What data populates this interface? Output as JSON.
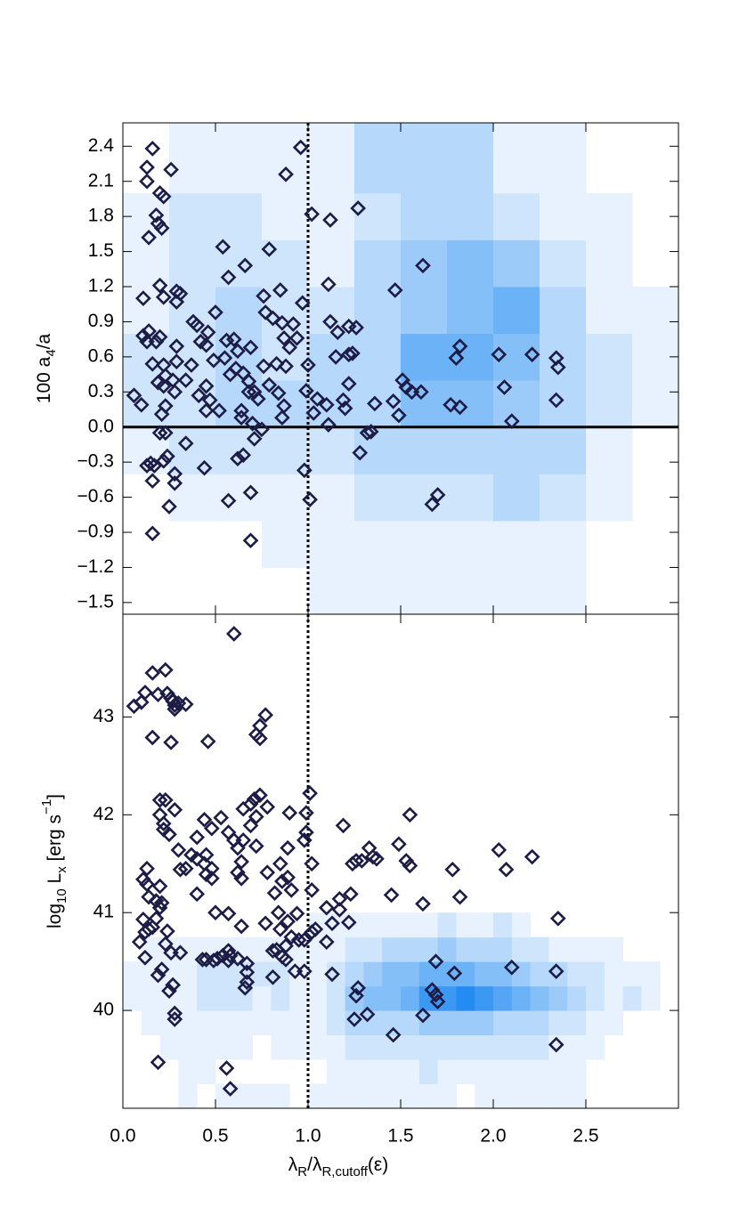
{
  "chart_data": [
    {
      "type": "scatter",
      "ylabel": [
        {
          "text": "100 a"
        },
        {
          "text": "4",
          "script": "sub"
        },
        {
          "text": "/a"
        }
      ],
      "ylim": [
        -1.6,
        2.6
      ],
      "yticks": [
        {
          "value": -1.5,
          "label": "−1.5"
        },
        {
          "value": -1.2,
          "label": "−1.2"
        },
        {
          "value": -0.9,
          "label": "−0.9"
        },
        {
          "value": -0.6,
          "label": "−0.6"
        },
        {
          "value": -0.3,
          "label": "−0.3"
        },
        {
          "value": 0,
          "label": "0.0"
        },
        0.3,
        0.6,
        0.9,
        1.2,
        1.5,
        1.8,
        2.1,
        2.4
      ],
      "hline": 0,
      "vline": 1.0,
      "color": "#1c1c46",
      "heatmap": {
        "color": "#0a7ef0",
        "zlim": [
          0,
          10
        ],
        "xbins": [
          0,
          0.25,
          0.5,
          0.75,
          1.0,
          1.25,
          1.5,
          1.75,
          2.0,
          2.25,
          2.5,
          2.75,
          3.0
        ],
        "ybins": [
          -1.6,
          -1.2,
          -0.8,
          -0.4,
          0,
          0.4,
          0.8,
          1.2,
          1.6,
          2.0,
          2.4,
          2.8
        ],
        "z": [
          [
            0,
            0,
            0,
            0,
            1,
            1,
            1,
            1,
            1,
            1,
            0,
            0
          ],
          [
            0,
            0,
            0,
            1,
            1,
            1,
            1,
            1,
            1,
            1,
            0,
            0
          ],
          [
            0,
            1,
            1,
            1,
            1,
            2,
            2,
            2,
            3,
            2,
            1,
            0
          ],
          [
            1,
            2,
            2,
            2,
            2,
            3,
            3,
            3,
            3,
            3,
            1,
            0
          ],
          [
            2,
            2,
            3,
            3,
            3,
            3,
            5,
            5,
            4,
            3,
            2,
            1
          ],
          [
            2,
            2,
            3,
            2,
            3,
            3,
            6,
            6,
            5,
            3,
            2,
            1
          ],
          [
            1,
            2,
            3,
            2,
            2,
            3,
            4,
            5,
            6,
            3,
            1,
            1
          ],
          [
            1,
            2,
            2,
            2,
            1,
            3,
            4,
            5,
            4,
            2,
            1,
            0
          ],
          [
            1,
            2,
            2,
            1,
            1,
            2,
            3,
            3,
            2,
            1,
            1,
            0
          ],
          [
            0,
            1,
            1,
            1,
            1,
            3,
            3,
            3,
            1,
            1,
            0,
            0
          ],
          [
            0,
            1,
            1,
            1,
            1,
            3,
            3,
            3,
            1,
            1,
            0,
            0
          ]
        ]
      },
      "x": [
        0.16,
        0.13,
        0.26,
        0.13,
        0.2,
        0.22,
        0.88,
        0.96,
        0.18,
        0.19,
        0.21,
        0.14,
        1.02,
        1.12,
        1.27,
        0.54,
        0.79,
        0.66,
        0.57,
        1.62,
        0.2,
        0.29,
        0.31,
        0.11,
        1.11,
        1.47,
        0.85,
        0.76,
        0.22,
        0.29,
        0.97,
        0.77,
        0.5,
        0.38,
        0.4,
        0.81,
        0.86,
        0.92,
        1.12,
        1.22,
        1.26,
        1.16,
        0.94,
        0.14,
        0.11,
        0.13,
        0.18,
        0.2,
        0.46,
        0.42,
        0.56,
        0.6,
        0.87,
        1.82,
        0.29,
        0.45,
        0.69,
        0.9,
        0.62,
        1.24,
        1.22,
        2.03,
        2.21,
        2.34,
        1.8,
        1.15,
        2.35,
        1.0,
        0.55,
        0.49,
        0.16,
        0.22,
        0.29,
        0.37,
        0.61,
        0.76,
        0.88,
        0.83,
        0.23,
        0.58,
        0.65,
        0.27,
        0.34,
        1.51,
        1.56,
        1.53,
        1.61,
        1.22,
        2.06,
        0.19,
        0.22,
        0.45,
        0.68,
        0.79,
        0.99,
        0.68,
        0.71,
        0.84,
        0.06,
        0.28,
        0.41,
        0.47,
        0.73,
        1.05,
        1.19,
        1.2,
        1.46,
        2.34,
        1.77,
        1.82,
        1.36,
        1.1,
        0.1,
        0.23,
        0.21,
        0.45,
        0.52,
        0.64,
        0.87,
        1.03,
        1.49,
        2.1,
        1.11,
        0.64,
        0.7,
        0.86,
        0.75,
        0.71,
        0.2,
        0.23,
        1.32,
        1.34,
        0.34,
        1.28,
        0.65,
        0.62,
        0.24,
        0.22,
        0.17,
        0.13,
        0.15,
        0.44,
        0.98,
        0.28,
        0.16,
        0.28,
        0.69,
        1.7,
        0.57,
        1.01,
        1.67,
        0.25,
        0.16,
        0.69
      ],
      "values": [
        2.38,
        2.22,
        2.2,
        2.1,
        2.0,
        1.97,
        2.16,
        2.39,
        1.81,
        1.74,
        1.7,
        1.62,
        1.82,
        1.77,
        1.87,
        1.54,
        1.52,
        1.38,
        1.28,
        1.38,
        1.21,
        1.16,
        1.14,
        1.1,
        1.22,
        1.17,
        1.17,
        1.12,
        1.11,
        1.07,
        1.06,
        0.98,
        0.98,
        0.9,
        0.87,
        0.93,
        0.89,
        0.88,
        0.9,
        0.86,
        0.85,
        0.81,
        0.76,
        0.82,
        0.78,
        0.73,
        0.73,
        0.77,
        0.81,
        0.73,
        0.74,
        0.75,
        0.76,
        0.69,
        0.69,
        0.7,
        0.68,
        0.68,
        0.65,
        0.63,
        0.62,
        0.62,
        0.62,
        0.59,
        0.59,
        0.6,
        0.51,
        0.53,
        0.59,
        0.57,
        0.54,
        0.53,
        0.56,
        0.53,
        0.5,
        0.52,
        0.52,
        0.54,
        0.44,
        0.45,
        0.46,
        0.4,
        0.4,
        0.4,
        0.3,
        0.34,
        0.3,
        0.37,
        0.34,
        0.38,
        0.35,
        0.35,
        0.39,
        0.36,
        0.31,
        0.3,
        0.3,
        0.29,
        0.27,
        0.3,
        0.27,
        0.23,
        0.24,
        0.24,
        0.23,
        0.16,
        0.22,
        0.23,
        0.19,
        0.17,
        0.2,
        0.19,
        0.19,
        0.18,
        0.11,
        0.14,
        0.14,
        0.14,
        0.18,
        0.12,
        0.1,
        0.05,
        0.02,
        0.08,
        0.03,
        0.08,
        -0.02,
        -0.1,
        -0.05,
        -0.05,
        -0.05,
        -0.04,
        -0.14,
        -0.22,
        -0.24,
        -0.27,
        -0.25,
        -0.29,
        -0.33,
        -0.33,
        -0.31,
        -0.35,
        -0.37,
        -0.4,
        -0.46,
        -0.48,
        -0.56,
        -0.58,
        -0.63,
        -0.62,
        -0.66,
        -0.68,
        -0.91,
        -0.97
      ]
    },
    {
      "type": "scatter",
      "ylabel": [
        {
          "text": "log"
        },
        {
          "text": "10",
          "script": "sub"
        },
        {
          "text": " L"
        },
        {
          "text": "x",
          "script": "sub"
        },
        {
          "text": " [erg s"
        },
        {
          "text": "−1",
          "script": "super"
        },
        {
          "text": "]"
        }
      ],
      "xlabel": [
        {
          "text": "λ"
        },
        {
          "text": "R",
          "script": "sub"
        },
        {
          "text": "/λ"
        },
        {
          "text": "R,cutoff",
          "script": "sub"
        },
        {
          "text": "(ε)"
        }
      ],
      "xlim": [
        0,
        3.0
      ],
      "xticks": [
        {
          "value": 0,
          "label": "0.0"
        },
        0.5,
        {
          "value": 1.0,
          "label": "1.0"
        },
        1.5,
        {
          "value": 2.0,
          "label": "2.0"
        },
        2.5
      ],
      "ylim": [
        39.0,
        44.05
      ],
      "yticks": [
        40,
        41,
        42,
        43
      ],
      "vline": 1.0,
      "color": "#1c1c46",
      "heatmap": {
        "color": "#0a7ef0",
        "zlim": [
          0,
          10
        ],
        "xbins": [
          0,
          0.1,
          0.2,
          0.3,
          0.4,
          0.5,
          0.6,
          0.7,
          0.8,
          0.9,
          1.0,
          1.1,
          1.2,
          1.3,
          1.4,
          1.5,
          1.6,
          1.7,
          1.8,
          1.9,
          2.0,
          2.1,
          2.2,
          2.3,
          2.4,
          2.5,
          2.6,
          2.7,
          2.8,
          2.9
        ],
        "ybins": [
          39.0,
          39.25,
          39.5,
          39.75,
          40.0,
          40.25,
          40.5,
          40.75,
          41.0
        ],
        "z": [
          [
            0,
            0,
            0,
            1,
            0,
            1,
            1,
            1,
            1,
            0,
            1,
            1,
            1,
            1,
            1,
            1,
            1,
            1,
            0,
            1,
            1,
            1,
            1,
            1,
            1,
            0,
            0,
            0,
            0
          ],
          [
            0,
            0,
            0,
            1,
            1,
            0,
            0,
            0,
            0,
            0,
            0,
            1,
            1,
            1,
            1,
            1,
            2,
            1,
            1,
            1,
            1,
            1,
            1,
            1,
            1,
            0,
            0,
            0,
            0
          ],
          [
            0,
            0,
            1,
            1,
            1,
            1,
            1,
            0,
            1,
            1,
            1,
            1,
            2,
            2,
            2,
            2,
            2,
            2,
            2,
            2,
            2,
            2,
            2,
            1,
            1,
            1,
            0,
            0,
            0
          ],
          [
            0,
            1,
            1,
            1,
            1,
            1,
            1,
            1,
            1,
            1,
            1,
            2,
            3,
            3,
            3,
            3,
            4,
            4,
            4,
            4,
            3,
            3,
            3,
            2,
            2,
            1,
            1,
            0,
            0
          ],
          [
            1,
            1,
            1,
            1,
            2,
            2,
            2,
            1,
            2,
            1,
            1,
            2,
            4,
            5,
            5,
            6,
            8,
            8,
            9,
            8,
            7,
            6,
            5,
            4,
            3,
            2,
            1,
            2,
            1
          ],
          [
            1,
            1,
            1,
            1,
            2,
            2,
            2,
            2,
            2,
            1,
            1,
            2,
            3,
            4,
            5,
            5,
            6,
            6,
            6,
            5,
            5,
            4,
            3,
            3,
            2,
            2,
            1,
            1,
            1
          ],
          [
            0,
            1,
            1,
            1,
            1,
            1,
            1,
            1,
            1,
            1,
            1,
            1,
            2,
            2,
            3,
            3,
            3,
            4,
            3,
            3,
            3,
            2,
            2,
            1,
            1,
            1,
            1,
            0,
            0
          ],
          [
            0,
            0,
            0,
            0,
            0,
            0,
            0,
            0,
            0,
            0,
            1,
            1,
            1,
            1,
            1,
            1,
            1,
            2,
            1,
            1,
            2,
            1,
            0,
            0,
            0,
            0,
            0,
            0,
            0
          ]
        ]
      },
      "x": [
        0.6,
        0.16,
        0.23,
        0.12,
        0.06,
        0.1,
        0.19,
        0.24,
        0.26,
        0.27,
        0.28,
        0.3,
        0.34,
        0.28,
        0.16,
        0.26,
        0.46,
        0.77,
        0.74,
        0.72,
        0.74,
        0.2,
        0.23,
        0.2,
        0.22,
        0.22,
        0.25,
        0.28,
        0.74,
        0.71,
        0.69,
        0.65,
        0.78,
        0.9,
        1.01,
        0.99,
        0.72,
        0.69,
        0.53,
        0.44,
        0.48,
        0.57,
        0.6,
        0.62,
        0.65,
        0.99,
        0.98,
        0.89,
        1.19,
        1.55,
        0.3,
        0.4,
        0.37,
        0.4,
        0.45,
        0.45,
        0.48,
        0.44,
        0.48,
        0.64,
        0.62,
        0.64,
        0.72,
        0.78,
        0.85,
        0.86,
        0.89,
        0.91,
        1.02,
        1.02,
        0.82,
        1.24,
        1.26,
        1.29,
        1.33,
        1.35,
        1.37,
        1.49,
        1.53,
        1.55,
        2.03,
        2.07,
        2.21,
        1.78,
        1.82,
        1.62,
        1.45,
        1.23,
        1.17,
        1.1,
        1.17,
        1.22,
        1.13,
        1.1,
        2.35,
        0.13,
        0.11,
        0.13,
        0.14,
        0.18,
        0.21,
        0.2,
        0.2,
        0.18,
        0.11,
        0.16,
        0.14,
        0.12,
        0.09,
        0.12,
        0.24,
        0.23,
        0.31,
        0.34,
        0.4,
        0.5,
        0.57,
        0.64,
        0.77,
        0.84,
        0.85,
        0.89,
        0.94,
        0.95,
        0.98,
        0.91,
        0.88,
        0.83,
        0.86,
        0.88,
        0.98,
        0.93,
        1.02,
        1.04,
        0.26,
        0.31,
        0.21,
        0.19,
        0.43,
        0.45,
        0.49,
        0.51,
        0.54,
        0.57,
        0.58,
        0.62,
        0.57,
        0.81,
        0.67,
        0.67,
        0.67,
        0.66,
        0.81,
        0.25,
        0.27,
        1.13,
        1.27,
        1.26,
        1.25,
        1.32,
        1.69,
        1.67,
        1.69,
        1.7,
        1.79,
        2.1,
        2.34,
        1.62,
        1.46,
        2.34,
        0.28,
        0.28,
        0.19,
        0.56,
        0.58
      ],
      "values": [
        43.85,
        43.45,
        43.48,
        43.25,
        43.11,
        43.15,
        43.23,
        43.24,
        43.19,
        43.16,
        43.12,
        43.14,
        43.13,
        43.08,
        42.79,
        42.74,
        42.75,
        43.02,
        42.91,
        42.82,
        42.78,
        42.15,
        42.15,
        42.0,
        41.91,
        41.85,
        41.8,
        42.05,
        42.2,
        42.16,
        42.11,
        42.06,
        42.08,
        42.02,
        42.22,
        42.02,
        41.98,
        41.89,
        41.97,
        41.95,
        41.86,
        41.82,
        41.74,
        41.66,
        41.74,
        41.82,
        41.74,
        41.66,
        41.89,
        42.0,
        41.64,
        41.55,
        41.59,
        41.77,
        41.59,
        41.39,
        41.35,
        41.5,
        41.45,
        41.52,
        41.41,
        41.35,
        41.68,
        41.41,
        41.5,
        41.32,
        41.36,
        41.23,
        41.5,
        41.23,
        41.2,
        41.5,
        41.53,
        41.53,
        41.66,
        41.57,
        41.55,
        41.7,
        41.53,
        41.48,
        41.64,
        41.44,
        41.57,
        41.44,
        41.16,
        41.09,
        41.18,
        41.19,
        41.14,
        41.05,
        41.03,
        40.9,
        40.89,
        40.7,
        40.94,
        41.45,
        41.34,
        41.29,
        41.16,
        41.12,
        41.1,
        41.27,
        41.05,
        40.94,
        40.93,
        40.85,
        40.83,
        40.8,
        40.7,
        40.54,
        40.81,
        40.68,
        41.44,
        41.45,
        41.19,
        41.0,
        40.99,
        40.86,
        40.89,
        41.0,
        40.83,
        40.91,
        40.99,
        40.72,
        40.72,
        40.75,
        40.66,
        40.62,
        40.55,
        40.52,
        40.4,
        40.4,
        40.8,
        40.83,
        40.59,
        40.59,
        40.42,
        40.36,
        40.52,
        40.52,
        40.51,
        40.53,
        40.56,
        40.61,
        40.56,
        40.53,
        40.51,
        40.61,
        40.48,
        40.39,
        40.29,
        40.23,
        40.34,
        40.2,
        40.26,
        40.37,
        40.23,
        40.15,
        39.91,
        39.96,
        40.5,
        40.21,
        40.16,
        40.09,
        40.38,
        40.44,
        40.4,
        39.95,
        39.75,
        39.65,
        39.97,
        39.91,
        39.47,
        39.41,
        39.2
      ]
    }
  ]
}
